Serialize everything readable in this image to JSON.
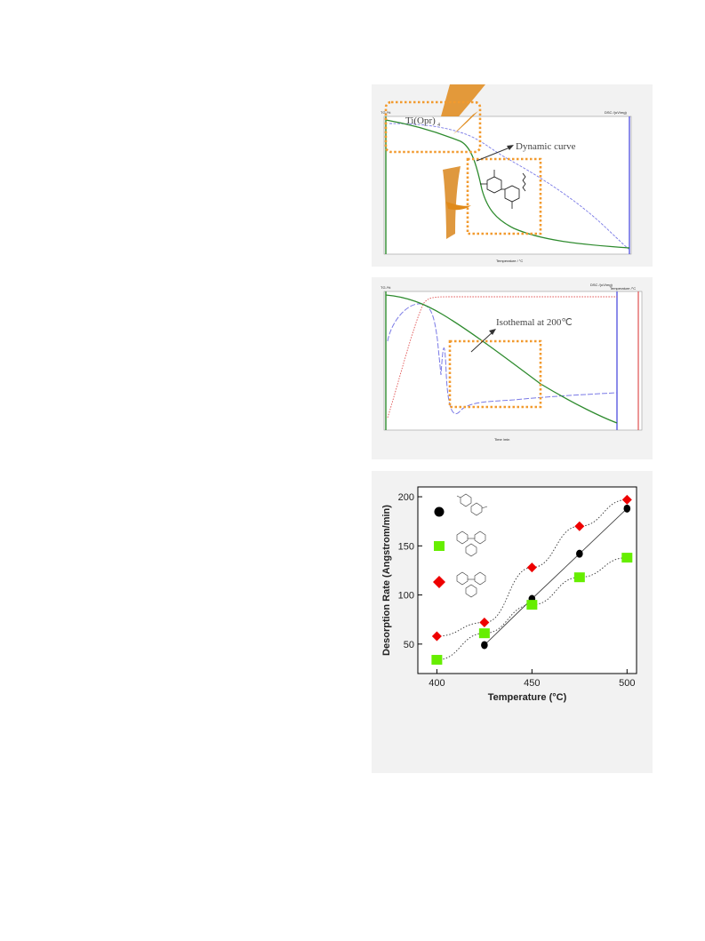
{
  "panels": {
    "tga_dynamic": {
      "label_ti": "Ti(Opr)",
      "label_ti_sub": "4",
      "annotation": "Dynamic curve",
      "xlabel": "Temperature / °C",
      "ylabel_left": "TG /%",
      "ylabel_right": "DSC /(uV/mg)",
      "right_unit_marker": "↑ exo",
      "colors": {
        "tg": "#2e8b2e",
        "dsc": "#7a7ae6",
        "box": "#f29a2e",
        "arrow": "#e08a1a"
      }
    },
    "tga_isothermal": {
      "annotation": "Isothemal at 200℃",
      "xlabel": "Time /min",
      "ylabel_left": "TG /%",
      "ylabel_right": "DSC /(uV/mg)",
      "ylabel_right2": "Temperature /°C",
      "right_unit_marker": "↑ exo",
      "colors": {
        "tg": "#2e8b2e",
        "dsc": "#7a7ae6",
        "temp": "#e05050",
        "box": "#f29a2e"
      }
    }
  },
  "chart_data": [
    {
      "type": "scatter",
      "xlabel": "Temperature (°C)",
      "ylabel": "Desorption Rate (Angstrom/min)",
      "xlim": [
        390,
        505
      ],
      "ylim": [
        20,
        210
      ],
      "xticks": [
        400,
        450,
        500
      ],
      "yticks": [
        50,
        100,
        150,
        200
      ],
      "grid": false,
      "legend_position": "top-left",
      "series": [
        {
          "marker": "circle",
          "color": "#000000",
          "line": "solid",
          "x": [
            425,
            450,
            475,
            500
          ],
          "y": [
            49,
            96,
            142,
            188
          ]
        },
        {
          "marker": "square",
          "color": "#66ee00",
          "line": "dotted",
          "x": [
            400,
            425,
            450,
            475,
            500
          ],
          "y": [
            34,
            61,
            90,
            118,
            138
          ]
        },
        {
          "marker": "diamond",
          "color": "#ee0000",
          "line": "dotted",
          "x": [
            400,
            425,
            450,
            475,
            500
          ],
          "y": [
            58,
            72,
            128,
            170,
            197
          ]
        }
      ]
    }
  ]
}
